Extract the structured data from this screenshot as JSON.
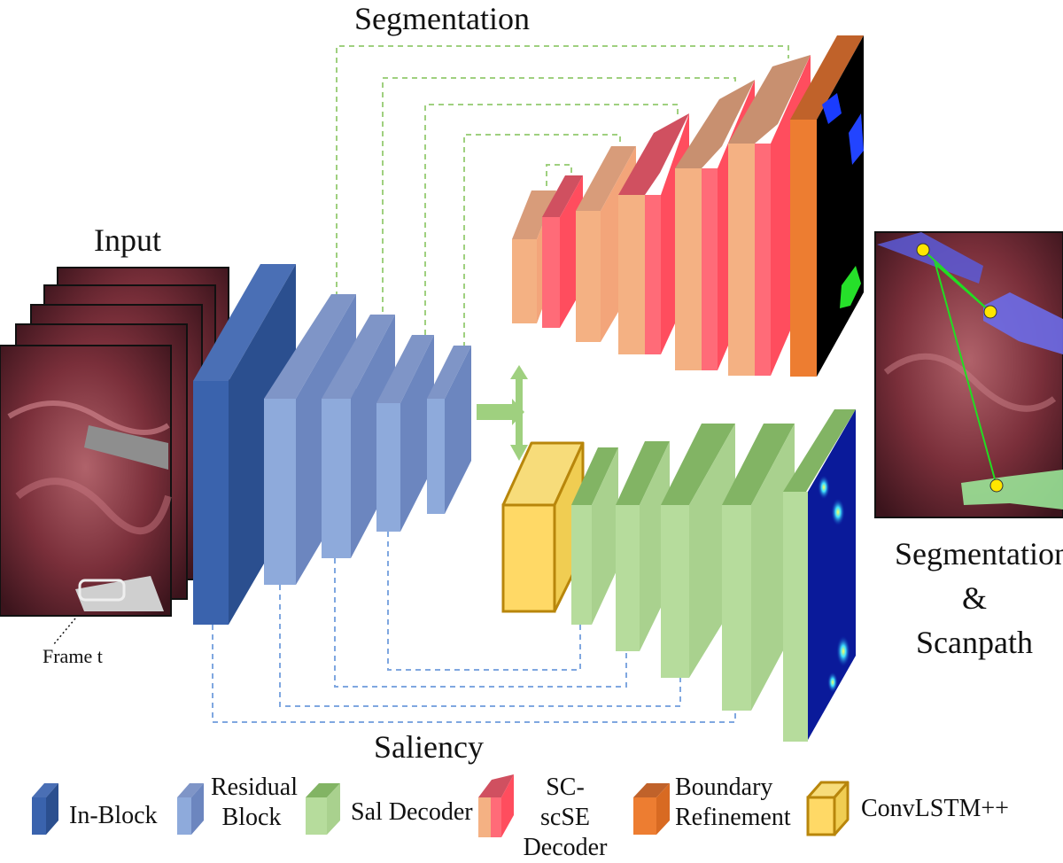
{
  "titles": {
    "segmentation": "Segmentation",
    "input": "Input",
    "saliency": "Saliency",
    "frame": "Frame t",
    "output_line1": "Segmentation",
    "output_line2": "&",
    "output_line3": "Scanpath"
  },
  "legend": {
    "in_block": "In-Block",
    "residual_line1": "Residual",
    "residual_line2": "Block",
    "sal_decoder": "Sal Decoder",
    "scse_line1": "SC-scSE",
    "scse_line2": "Decoder",
    "boundary_line1": "Boundary",
    "boundary_line2": "Refinement",
    "convlstm": "ConvLSTM++"
  },
  "colors": {
    "in_block": "#2f5597",
    "residual_block": "#8eaadb",
    "sal_decoder": "#a9d18e",
    "scse_decoder_peach": "#f4b183",
    "scse_decoder_red": "#ff5f6d",
    "boundary_refinement": "#ed7d31",
    "convlstm": "#ffd966",
    "seg_skip_line": "#9fd07f",
    "sal_skip_line": "#7fa7e0"
  },
  "icons": {
    "frames": "surgical-video-frames",
    "seg_map": "segmentation-mask",
    "sal_map": "saliency-heatmap",
    "output": "segmentation-scanpath-image"
  }
}
